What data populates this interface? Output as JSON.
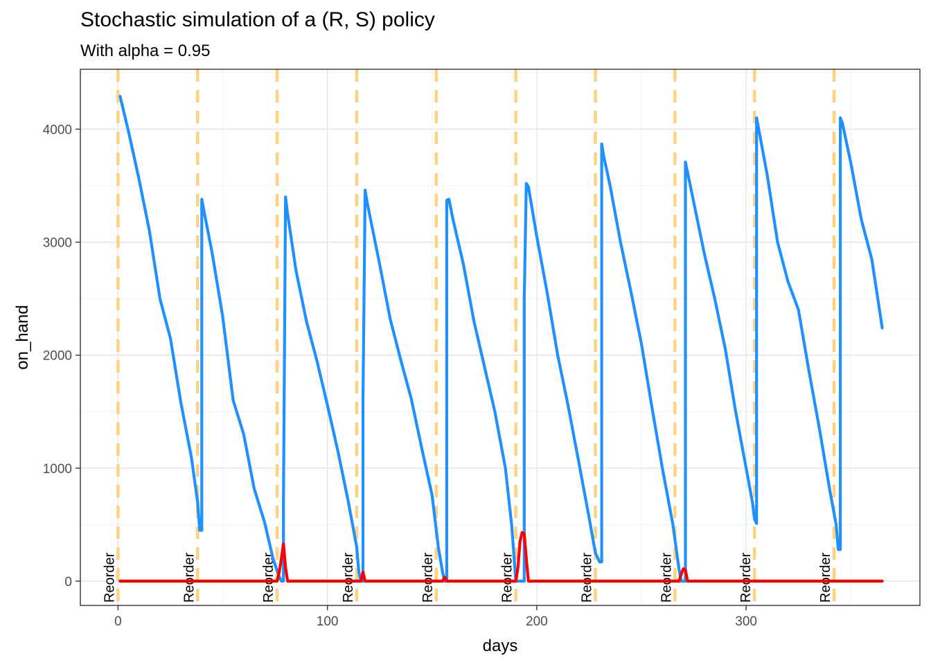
{
  "chart_data": {
    "type": "line",
    "title": "Stochastic simulation of a (R, S) policy",
    "subtitle": "With alpha = 0.95",
    "xlabel": "days",
    "ylabel": "on_hand",
    "xlim": [
      -18,
      383
    ],
    "ylim": [
      -215,
      4530
    ],
    "x_ticks": [
      0,
      100,
      200,
      300
    ],
    "y_ticks": [
      0,
      1000,
      2000,
      3000,
      4000
    ],
    "grid": true,
    "legend": "none",
    "reorder_label": "Reorder",
    "reorder_days": [
      0,
      38,
      76,
      114,
      152,
      190,
      228,
      266,
      304,
      342
    ],
    "series": [
      {
        "color": "#1e90ff",
        "values": [
          [
            1,
            4290
          ],
          [
            5,
            3980
          ],
          [
            10,
            3560
          ],
          [
            15,
            3100
          ],
          [
            20,
            2500
          ],
          [
            25,
            2150
          ],
          [
            30,
            1580
          ],
          [
            35,
            1100
          ],
          [
            38,
            700
          ],
          [
            39,
            450
          ],
          [
            40,
            450
          ],
          [
            40,
            3380
          ],
          [
            41,
            3280
          ],
          [
            45,
            2900
          ],
          [
            50,
            2340
          ],
          [
            55,
            1600
          ],
          [
            60,
            1300
          ],
          [
            65,
            820
          ],
          [
            70,
            520
          ],
          [
            74,
            200
          ],
          [
            77,
            40
          ],
          [
            78,
            0
          ],
          [
            79,
            0
          ],
          [
            79,
            700
          ],
          [
            80,
            3400
          ],
          [
            81,
            3250
          ],
          [
            85,
            2750
          ],
          [
            90,
            2300
          ],
          [
            95,
            1950
          ],
          [
            100,
            1560
          ],
          [
            105,
            1150
          ],
          [
            110,
            700
          ],
          [
            114,
            300
          ],
          [
            115,
            80
          ],
          [
            116,
            0
          ],
          [
            117,
            0
          ],
          [
            117,
            1600
          ],
          [
            118,
            3460
          ],
          [
            119,
            3350
          ],
          [
            125,
            2800
          ],
          [
            130,
            2320
          ],
          [
            135,
            1960
          ],
          [
            140,
            1620
          ],
          [
            145,
            1180
          ],
          [
            150,
            760
          ],
          [
            153,
            300
          ],
          [
            155,
            80
          ],
          [
            156,
            0
          ],
          [
            157,
            0
          ],
          [
            157,
            3370
          ],
          [
            158,
            3380
          ],
          [
            160,
            3200
          ],
          [
            165,
            2800
          ],
          [
            170,
            2300
          ],
          [
            175,
            1900
          ],
          [
            180,
            1500
          ],
          [
            185,
            1000
          ],
          [
            188,
            500
          ],
          [
            190,
            0
          ],
          [
            194,
            0
          ],
          [
            194,
            2500
          ],
          [
            195,
            3520
          ],
          [
            196,
            3490
          ],
          [
            200,
            3050
          ],
          [
            205,
            2550
          ],
          [
            210,
            2000
          ],
          [
            215,
            1550
          ],
          [
            220,
            1060
          ],
          [
            225,
            560
          ],
          [
            228,
            250
          ],
          [
            230,
            170
          ],
          [
            231,
            170
          ],
          [
            231,
            3870
          ],
          [
            232,
            3760
          ],
          [
            235,
            3500
          ],
          [
            240,
            3000
          ],
          [
            245,
            2560
          ],
          [
            250,
            2100
          ],
          [
            255,
            1540
          ],
          [
            260,
            1000
          ],
          [
            265,
            500
          ],
          [
            268,
            100
          ],
          [
            269,
            0
          ],
          [
            271,
            0
          ],
          [
            271,
            3710
          ],
          [
            272,
            3620
          ],
          [
            275,
            3350
          ],
          [
            280,
            2900
          ],
          [
            285,
            2500
          ],
          [
            290,
            2060
          ],
          [
            295,
            1500
          ],
          [
            300,
            1000
          ],
          [
            303,
            700
          ],
          [
            304,
            550
          ],
          [
            305,
            510
          ],
          [
            305,
            4100
          ],
          [
            306,
            4000
          ],
          [
            310,
            3600
          ],
          [
            315,
            3000
          ],
          [
            320,
            2650
          ],
          [
            325,
            2400
          ],
          [
            330,
            1860
          ],
          [
            335,
            1350
          ],
          [
            340,
            800
          ],
          [
            343,
            500
          ],
          [
            344,
            280
          ],
          [
            345,
            280
          ],
          [
            345,
            4100
          ],
          [
            346,
            4050
          ],
          [
            350,
            3700
          ],
          [
            355,
            3200
          ],
          [
            360,
            2850
          ],
          [
            365,
            2240
          ]
        ]
      },
      {
        "color": "#ff0000",
        "values": [
          [
            1,
            0
          ],
          [
            76,
            0
          ],
          [
            77,
            80
          ],
          [
            78,
            200
          ],
          [
            79,
            330
          ],
          [
            80,
            120
          ],
          [
            81,
            0
          ],
          [
            116,
            0
          ],
          [
            117,
            80
          ],
          [
            118,
            0
          ],
          [
            155,
            0
          ],
          [
            156,
            35
          ],
          [
            157,
            0
          ],
          [
            190,
            0
          ],
          [
            191,
            120
          ],
          [
            192,
            350
          ],
          [
            193,
            430
          ],
          [
            194,
            420
          ],
          [
            195,
            200
          ],
          [
            196,
            0
          ],
          [
            268,
            0
          ],
          [
            269,
            60
          ],
          [
            270,
            110
          ],
          [
            271,
            100
          ],
          [
            272,
            0
          ],
          [
            365,
            0
          ]
        ]
      }
    ]
  }
}
